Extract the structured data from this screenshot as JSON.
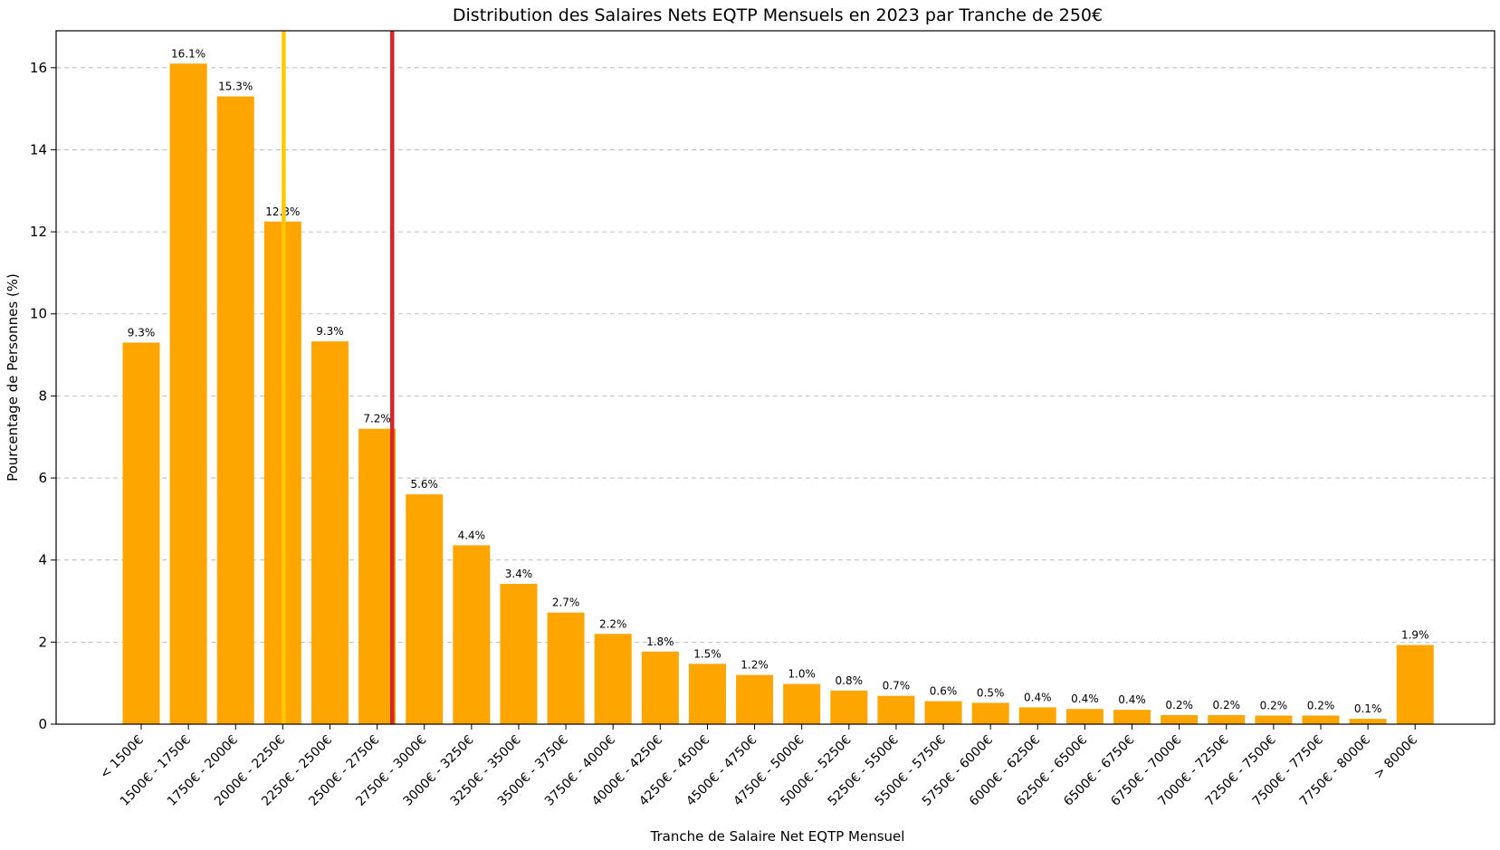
{
  "chart_data": {
    "type": "bar",
    "title": "Distribution des Salaires Nets EQTP Mensuels en 2023 par Tranche de 250€",
    "xlabel": "Tranche de Salaire Net EQTP Mensuel",
    "ylabel": "Pourcentage de Personnes (%)",
    "categories": [
      "< 1500€",
      "1500€ - 1750€",
      "1750€ - 2000€",
      "2000€ - 2250€",
      "2250€ - 2500€",
      "2500€ - 2750€",
      "2750€ - 3000€",
      "3000€ - 3250€",
      "3250€ - 3500€",
      "3500€ - 3750€",
      "3750€ - 4000€",
      "4000€ - 4250€",
      "4250€ - 4500€",
      "4500€ - 4750€",
      "4750€ - 5000€",
      "5000€ - 5250€",
      "5250€ - 5500€",
      "5500€ - 5750€",
      "5750€ - 6000€",
      "6000€ - 6250€",
      "6250€ - 6500€",
      "6500€ - 6750€",
      "6750€ - 7000€",
      "7000€ - 7250€",
      "7250€ - 7500€",
      "7500€ - 7750€",
      "7750€ - 8000€",
      "> 8000€"
    ],
    "values": [
      9.3,
      16.1,
      15.3,
      12.25,
      9.33,
      7.2,
      5.6,
      4.36,
      3.42,
      2.72,
      2.2,
      1.77,
      1.47,
      1.2,
      0.98,
      0.82,
      0.69,
      0.56,
      0.52,
      0.41,
      0.37,
      0.35,
      0.22,
      0.22,
      0.21,
      0.21,
      0.13,
      1.93
    ],
    "value_labels": [
      "9.3%",
      "16.1%",
      "15.3%",
      "12.3%",
      "9.3%",
      "7.2%",
      "5.6%",
      "4.4%",
      "3.4%",
      "2.7%",
      "2.2%",
      "1.8%",
      "1.5%",
      "1.2%",
      "1.0%",
      "0.8%",
      "0.7%",
      "0.6%",
      "0.5%",
      "0.4%",
      "0.4%",
      "0.4%",
      "0.2%",
      "0.2%",
      "0.2%",
      "0.2%",
      "0.1%",
      "1.9%"
    ],
    "yticks": [
      0,
      2,
      4,
      6,
      8,
      10,
      12,
      14,
      16
    ],
    "ylim": [
      0,
      16.9
    ],
    "grid": "y, dashed",
    "bar_color": "#FFA500",
    "vertical_lines": [
      {
        "x_index": 3.02,
        "color": "#FFC800"
      },
      {
        "x_index": 5.32,
        "color": "#D62728"
      }
    ]
  }
}
